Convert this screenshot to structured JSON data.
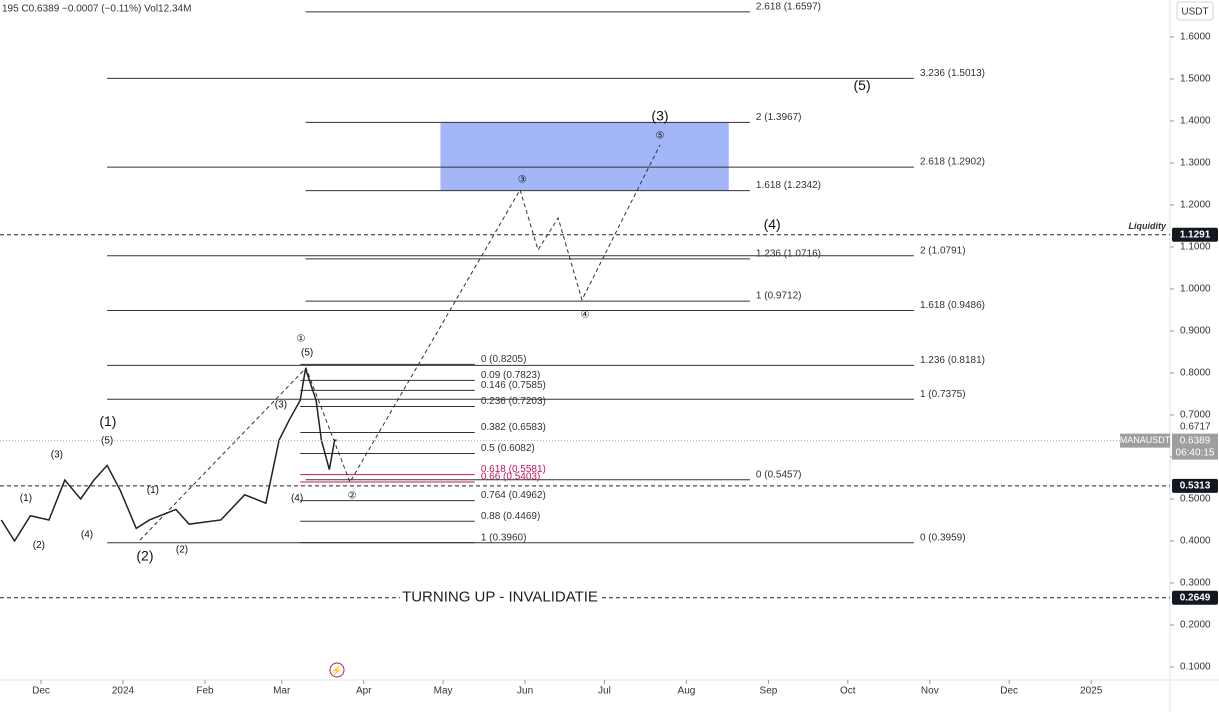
{
  "chart_data": {
    "type": "line",
    "header": "195  C0.6389  −0.0007 (−0.11%)  Vol12.34M",
    "currency": "USDT",
    "xlim": [
      -15.5,
      426.8
    ],
    "xticks": [
      {
        "value": 0,
        "label": "Dec"
      },
      {
        "value": 31,
        "label": "2024"
      },
      {
        "value": 62,
        "label": "Feb"
      },
      {
        "value": 91,
        "label": "Mar"
      },
      {
        "value": 122,
        "label": "Apr"
      },
      {
        "value": 152,
        "label": "May"
      },
      {
        "value": 183,
        "label": "Jun"
      },
      {
        "value": 213,
        "label": "Jul"
      },
      {
        "value": 244,
        "label": "Aug"
      },
      {
        "value": 275,
        "label": "Sep"
      },
      {
        "value": 305,
        "label": "Oct"
      },
      {
        "value": 336,
        "label": "Nov"
      },
      {
        "value": 366,
        "label": "Dec"
      },
      {
        "value": 397,
        "label": "2025"
      }
    ],
    "ylim": [
      0.069,
      1.688
    ],
    "yticks": [
      {
        "value": 0.1,
        "label": "0.1000"
      },
      {
        "value": 0.2,
        "label": "0.2000"
      },
      {
        "value": 0.3,
        "label": "0.3000"
      },
      {
        "value": 0.4,
        "label": "0.4000"
      },
      {
        "value": 0.5,
        "label": "0.5000"
      },
      {
        "value": 0.6,
        "label": "0.6000"
      },
      {
        "value": 0.7,
        "label": "0.7000"
      },
      {
        "value": 0.8,
        "label": "0.8000"
      },
      {
        "value": 0.9,
        "label": "0.9000"
      },
      {
        "value": 1.0,
        "label": "1.0000"
      },
      {
        "value": 1.1,
        "label": "1.1000"
      },
      {
        "value": 1.2,
        "label": "1.2000"
      },
      {
        "value": 1.3,
        "label": "1.3000"
      },
      {
        "value": 1.4,
        "label": "1.4000"
      },
      {
        "value": 1.5,
        "label": "1.5000"
      },
      {
        "value": 1.6,
        "label": "1.6000"
      }
    ],
    "series": [
      {
        "name": "MANAUSDT",
        "color": "#222222",
        "x": [
          -15,
          -10,
          -4,
          3,
          9,
          15,
          20,
          25,
          30,
          36,
          41,
          51,
          56,
          68,
          77,
          85,
          90,
          94,
          98,
          100,
          104,
          106,
          109,
          111,
          112
        ],
        "values": [
          0.45,
          0.4,
          0.46,
          0.45,
          0.545,
          0.5,
          0.545,
          0.58,
          0.52,
          0.43,
          0.45,
          0.475,
          0.44,
          0.45,
          0.51,
          0.49,
          0.64,
          0.69,
          0.735,
          0.81,
          0.735,
          0.64,
          0.57,
          0.64,
          0.6389
        ]
      }
    ],
    "projection": {
      "x": [
        37.4,
        100.2,
        116.8,
        181.1,
        187.9,
        195.5,
        204.5,
        234
      ],
      "values": [
        0.402,
        0.812,
        0.54,
        1.236,
        1.093,
        1.169,
        0.974,
        1.343
      ]
    },
    "zone": {
      "x": [
        151,
        260
      ],
      "y": [
        1.2342,
        1.3967
      ],
      "color": "#a3b6f7"
    },
    "fib_sets": [
      {
        "x": [
          25,
          330
        ],
        "levels": [
          {
            "value": 1.5013,
            "label": "3.236 (1.5013)"
          },
          {
            "value": 1.2902,
            "label": "2.618 (1.2902)"
          },
          {
            "value": 1.0791,
            "label": "2 (1.0791)"
          },
          {
            "value": 0.9486,
            "label": "1.618 (0.9486)"
          },
          {
            "value": 0.8181,
            "label": "1.236 (0.8181)"
          },
          {
            "value": 0.7375,
            "label": "1 (0.7375)"
          },
          {
            "value": 0.3959,
            "label": "0 (0.3959)"
          }
        ]
      },
      {
        "x": [
          100,
          268
        ],
        "levels": [
          {
            "value": 1.6597,
            "label": "2.618 (1.6597)"
          },
          {
            "value": 1.3967,
            "label": "2 (1.3967)"
          },
          {
            "value": 1.2342,
            "label": "1.618 (1.2342)"
          },
          {
            "value": 1.0716,
            "label": "1.236 (1.0716)"
          },
          {
            "value": 0.9712,
            "label": "1 (0.9712)"
          },
          {
            "value": 0.5457,
            "label": "0 (0.5457)"
          }
        ]
      },
      {
        "x": [
          98,
          164
        ],
        "levels": [
          {
            "value": 0.8205,
            "label": "0 (0.8205)"
          },
          {
            "value": 0.7823,
            "label": "0.09 (0.7823)"
          },
          {
            "value": 0.7585,
            "label": "0.146 (0.7585)"
          },
          {
            "value": 0.7203,
            "label": "0.236 (0.7203)"
          },
          {
            "value": 0.6583,
            "label": "0.382 (0.6583)"
          },
          {
            "value": 0.6082,
            "label": "0.5 (0.6082)"
          },
          {
            "value": 0.5581,
            "label": "0.618 (0.5581)",
            "color": "#c2185b"
          },
          {
            "value": 0.5403,
            "label": "0.66 (0.5403)",
            "color": "#c2185b"
          },
          {
            "value": 0.4962,
            "label": "0.764 (0.4962)"
          },
          {
            "value": 0.4469,
            "label": "0.88 (0.4469)"
          },
          {
            "value": 0.396,
            "label": "1 (0.3960)"
          }
        ]
      }
    ],
    "annotations": [
      {
        "text": "(1)",
        "x": 25.3,
        "y": 0.683,
        "size": "big"
      },
      {
        "text": "(5)",
        "x": 25,
        "y": 0.638
      },
      {
        "text": "(3)",
        "x": 6,
        "y": 0.605
      },
      {
        "text": "(1)",
        "x": -5.7,
        "y": 0.502
      },
      {
        "text": "(2)",
        "x": -0.8,
        "y": 0.39
      },
      {
        "text": "(4)",
        "x": 17.4,
        "y": 0.414
      },
      {
        "text": "(2)",
        "x": 39.3,
        "y": 0.362,
        "size": "big"
      },
      {
        "text": "(1)",
        "x": 42.3,
        "y": 0.521
      },
      {
        "text": "(2)",
        "x": 53.3,
        "y": 0.379
      },
      {
        "text": "(3)",
        "x": 90.7,
        "y": 0.724
      },
      {
        "text": "(5)",
        "x": 100.6,
        "y": 0.848
      },
      {
        "text": "①",
        "x": 98.3,
        "y": 0.881
      },
      {
        "text": "(4)",
        "x": 96.8,
        "y": 0.502
      },
      {
        "text": "②",
        "x": 117.6,
        "y": 0.507
      },
      {
        "text": "③",
        "x": 181.9,
        "y": 1.26
      },
      {
        "text": "④",
        "x": 205.7,
        "y": 0.938
      },
      {
        "text": "⑤",
        "x": 234,
        "y": 1.364
      },
      {
        "text": "(3)",
        "x": 234,
        "y": 1.41,
        "size": "big"
      },
      {
        "text": "(4)",
        "x": 276.4,
        "y": 1.152,
        "size": "big"
      },
      {
        "text": "(5)",
        "x": 310.4,
        "y": 1.483,
        "size": "big"
      }
    ],
    "price_lines": [
      {
        "value": 1.1291,
        "text": "Liquidity"
      },
      {
        "value": 0.5313
      },
      {
        "value": 0.2649,
        "text": "TURNING UP - INVALIDATIE"
      }
    ],
    "high_mark": {
      "value": 0.6717,
      "label": "0.6717"
    },
    "last_price": {
      "symbol": "MANAUSDT",
      "value": 0.6389,
      "countdown": "06:40:15"
    }
  }
}
